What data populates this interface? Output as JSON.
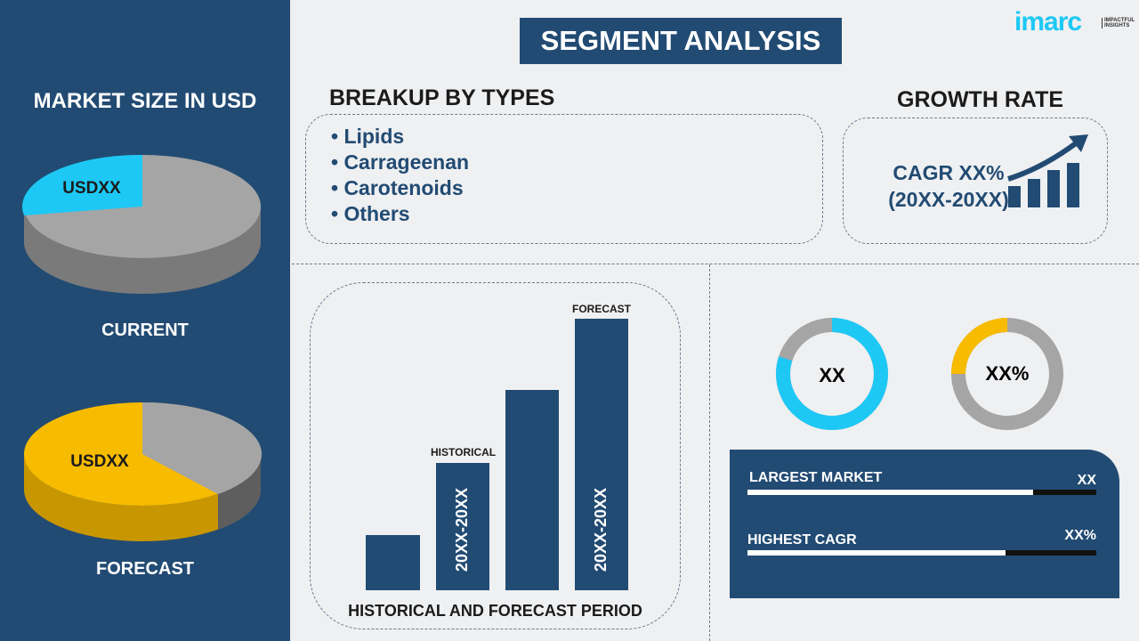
{
  "logo": {
    "brand": "imarc",
    "tagline": "IMPACTFUL INSIGHTS"
  },
  "title": "SEGMENT ANALYSIS",
  "left": {
    "heading": "MARKET SIZE IN USD",
    "current": {
      "value": "USDXX",
      "label": "CURRENT",
      "share_pct": 25
    },
    "forecast": {
      "value": "USDXX",
      "label": "FORECAST",
      "share_pct": 62
    }
  },
  "breakup": {
    "heading": "BREAKUP BY TYPES",
    "items": [
      "• Lipids",
      "• Carrageenan",
      "• Carotenoids",
      "• Others"
    ]
  },
  "growth": {
    "heading": "GROWTH RATE",
    "cagr": "CAGR XX%",
    "period": "(20XX-20XX)"
  },
  "period_chart": {
    "caption": "HISTORICAL AND FORECAST PERIOD",
    "historical_label": "HISTORICAL",
    "forecast_label": "FORECAST",
    "historical_range": "20XX-20XX",
    "forecast_range": "20XX-20XX"
  },
  "donuts": [
    {
      "label": "XX",
      "fill_pct": 80,
      "color": "#1ec8f5"
    },
    {
      "label": "XX%",
      "fill_pct": 25,
      "color": "#f7bb00"
    }
  ],
  "stats": [
    {
      "label": "LARGEST MARKET",
      "value": "XX",
      "fill_pct": 82
    },
    {
      "label": "HIGHEST CAGR",
      "value": "XX%",
      "fill_pct": 74
    }
  ],
  "colors": {
    "navy": "#224b73",
    "cyan": "#1ec8f5",
    "yellow": "#f7bb00",
    "gray": "#a5a5a5"
  }
}
